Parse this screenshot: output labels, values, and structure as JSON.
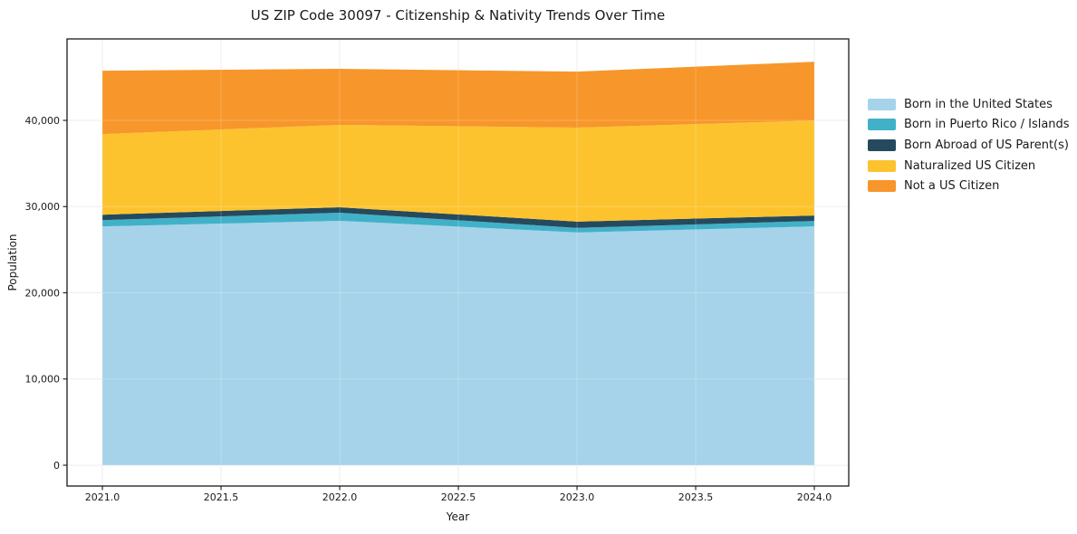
{
  "figure": {
    "background": "#ffffff",
    "spine_color": "#1a1a1a",
    "grid_color": "#e9e9e9",
    "tick_color": "#1a1a1a",
    "tick_label_color": "#1a1a1a"
  },
  "chart_data": {
    "type": "area",
    "stacked": true,
    "title": "US ZIP Code 30097 - Citizenship & Nativity Trends Over Time",
    "xlabel": "Year",
    "ylabel": "Population",
    "grid": true,
    "legend_position": "right-outside",
    "x": [
      2021,
      2022,
      2023,
      2024
    ],
    "series": [
      {
        "name": "Born in the United States",
        "color": "#a6d3e9",
        "values": [
          27700,
          28350,
          27000,
          27700
        ]
      },
      {
        "name": "Born in Puerto Rico / Islands",
        "color": "#41b1c8",
        "values": [
          730,
          940,
          530,
          630
        ]
      },
      {
        "name": "Born Abroad of US Parent(s)",
        "color": "#254a5d",
        "values": [
          630,
          630,
          730,
          630
        ]
      },
      {
        "name": "Naturalized US Citizen",
        "color": "#fdc32f",
        "values": [
          9350,
          9560,
          10900,
          11020
        ]
      },
      {
        "name": "Not a US Citizen",
        "color": "#f7962a",
        "values": [
          7350,
          6500,
          6500,
          6820
        ]
      }
    ],
    "totals": [
      45760,
      45980,
      45660,
      46800
    ],
    "xticks": [
      2021.0,
      2021.5,
      2022.0,
      2022.5,
      2023.0,
      2023.5,
      2024.0
    ],
    "xtick_labels": [
      "2021.0",
      "2021.5",
      "2022.0",
      "2022.5",
      "2023.0",
      "2023.5",
      "2024.0"
    ],
    "yticks": [
      0,
      10000,
      20000,
      30000,
      40000
    ],
    "ytick_labels": [
      "0",
      "10,000",
      "20,000",
      "30,000",
      "40,000"
    ],
    "xlim": [
      2020.851,
      2024.145
    ],
    "ylim": [
      -2415,
      49449
    ]
  }
}
